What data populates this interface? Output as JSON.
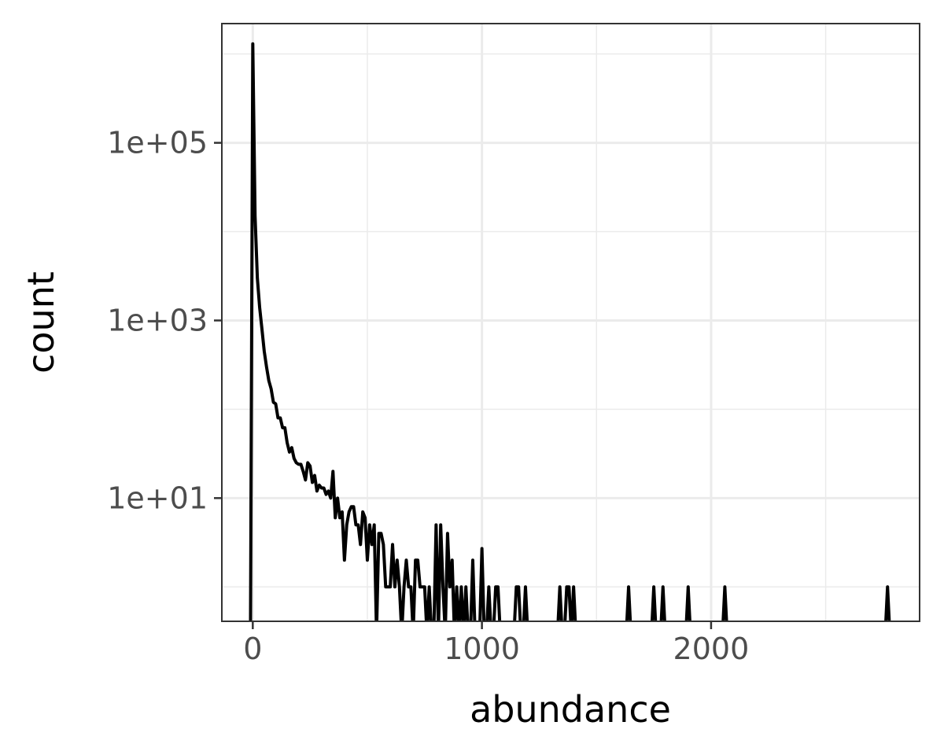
{
  "chart_data": {
    "type": "line",
    "title": "",
    "xlabel": "abundance",
    "ylabel": "count",
    "y_scale": "log10",
    "xlim": [
      -135,
      2910
    ],
    "ylim": [
      0.41,
      2200000
    ],
    "x_ticks": [
      {
        "value": 0,
        "label": "0"
      },
      {
        "value": 1000,
        "label": "1000"
      },
      {
        "value": 2000,
        "label": "2000"
      }
    ],
    "y_ticks": [
      {
        "value": 10,
        "label": "1e+01"
      },
      {
        "value": 1000,
        "label": "1e+03"
      },
      {
        "value": 100000,
        "label": "1e+05"
      }
    ],
    "grid": true,
    "legend": "none",
    "line_color": "#000000",
    "series": [
      {
        "x": [
          -10,
          0,
          10,
          20,
          30,
          40,
          50,
          60,
          70,
          80,
          90,
          100,
          110,
          120,
          130,
          140,
          150,
          160,
          170,
          180,
          190,
          200,
          210,
          220,
          230,
          240,
          250,
          260,
          270,
          280,
          290,
          300,
          310,
          320,
          330,
          340,
          350,
          360,
          370,
          380,
          390,
          400,
          410,
          420,
          430,
          440,
          450,
          460,
          470,
          480,
          490,
          500,
          510,
          520,
          530,
          540,
          550,
          560,
          570,
          580,
          590,
          600,
          610,
          620,
          630,
          640,
          650,
          660,
          670,
          680,
          690,
          700,
          710,
          720,
          730,
          740,
          750,
          760,
          770,
          780,
          790,
          800,
          810,
          820,
          830,
          840,
          850,
          860,
          870,
          880,
          890,
          900,
          910,
          920,
          930,
          940,
          950,
          960,
          970,
          980,
          990,
          1000,
          1010,
          1020,
          1030,
          1040,
          1050,
          1060,
          1070,
          1080,
          1090,
          1140,
          1150,
          1160,
          1170,
          1180,
          1190,
          1200,
          1330,
          1340,
          1350,
          1360,
          1370,
          1380,
          1390,
          1400,
          1410,
          1630,
          1640,
          1650,
          1740,
          1750,
          1760,
          1780,
          1790,
          1800,
          1890,
          1900,
          1910,
          2050,
          2060,
          2070,
          2760,
          2770,
          2780
        ],
        "y": [
          0.3,
          1300000,
          15000,
          3000,
          1400,
          800,
          450,
          300,
          210,
          170,
          120,
          115,
          80,
          80,
          62,
          62,
          42,
          33,
          37,
          28,
          25,
          24,
          24,
          20,
          16,
          25,
          23,
          15,
          18,
          12,
          14,
          13,
          13,
          11,
          12,
          10,
          20,
          6,
          10,
          6,
          7,
          2,
          5,
          7,
          8,
          8,
          5,
          5,
          3,
          7,
          6,
          2,
          5,
          3,
          5,
          0.3,
          4,
          4,
          3,
          1,
          1,
          1,
          3,
          1,
          2,
          1,
          0.3,
          1,
          2,
          1,
          1,
          0.3,
          2,
          2,
          1,
          1,
          1,
          0.3,
          1,
          0.3,
          0.3,
          5,
          0.3,
          5,
          1,
          0.3,
          4,
          1,
          2,
          0.3,
          1,
          0.3,
          1,
          0.3,
          1,
          0.3,
          0.3,
          2,
          0.3,
          0.3,
          0.3,
          2.7,
          0.3,
          0.3,
          1,
          0.3,
          0.3,
          1,
          1,
          0.3,
          0.3,
          0.3,
          1,
          1,
          0.3,
          0.3,
          1,
          0.3,
          0.3,
          1,
          0.3,
          0.3,
          1,
          1,
          0.3,
          1,
          0.3,
          0.3,
          1,
          0.3,
          0.3,
          1,
          0.3,
          0.3,
          1,
          0.3,
          0.3,
          1,
          0.3,
          0.3,
          1,
          0.3,
          0.3,
          1,
          0.3
        ]
      }
    ]
  }
}
